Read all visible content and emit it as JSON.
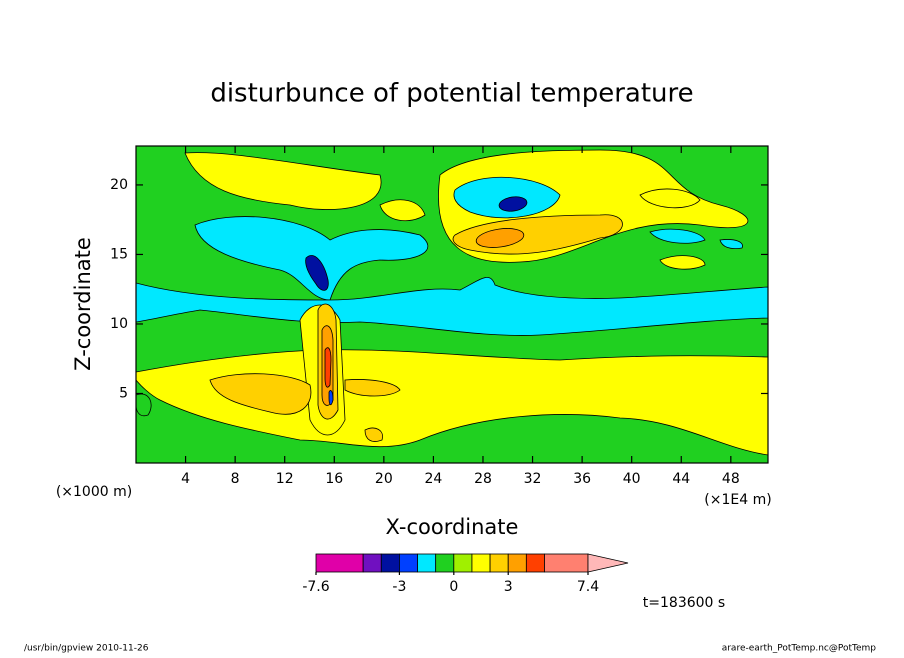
{
  "chart_data": {
    "type": "contour",
    "title": "disturbunce of potential temperature",
    "x_label": "X-coordinate",
    "y_label": "Z-coordinate",
    "x_unit_note": "(×1E4 m)",
    "y_unit_note": "(×1000 m)",
    "xlim": [
      0,
      51
    ],
    "xticks": [
      4,
      8,
      12,
      16,
      20,
      24,
      28,
      32,
      36,
      40,
      44,
      48
    ],
    "ylim": [
      0,
      22.8
    ],
    "yticks": [
      5,
      10,
      15,
      20
    ],
    "levels": [
      -7.6,
      -5,
      -4,
      -3,
      -2,
      -1,
      0,
      1,
      2,
      3,
      4,
      5,
      7.4
    ],
    "colors": [
      "#e000a8",
      "#7010c0",
      "#0010a0",
      "#0040ff",
      "#00e8ff",
      "#20d020",
      "#a0f000",
      "#ffff00",
      "#ffd000",
      "#ffa000",
      "#ff4000",
      "#ff8070"
    ],
    "over_color": "#ffb8b8",
    "colorbar_ticks": [
      -7.6,
      -3,
      0,
      3,
      7.4
    ],
    "time_label": "t=183600 s",
    "footer_left": "/usr/bin/gpview  2010-11-26",
    "footer_right": "arare-earth_PotTemp.nc@PotTemp"
  }
}
